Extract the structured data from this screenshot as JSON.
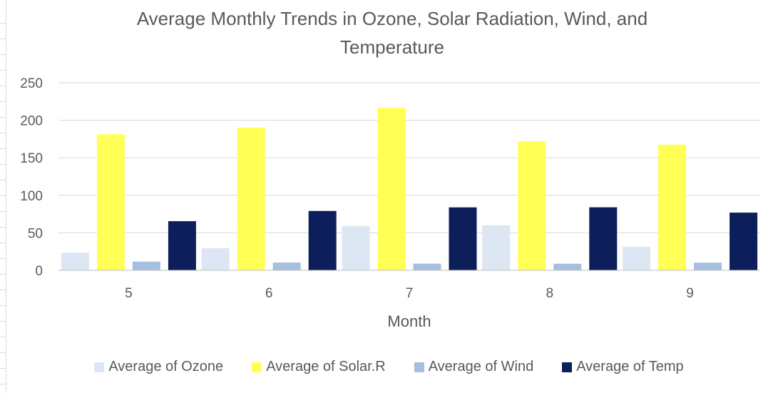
{
  "chart_data": {
    "type": "bar",
    "title": "Average Monthly Trends in Ozone, Solar Radiation, Wind, and Temperature",
    "xlabel": "Month",
    "ylabel": "",
    "categories": [
      "5",
      "6",
      "7",
      "8",
      "9"
    ],
    "ylim": [
      0,
      250
    ],
    "yticks": [
      0,
      50,
      100,
      150,
      200,
      250
    ],
    "grid": true,
    "legend_position": "bottom",
    "series": [
      {
        "name": "Average of Ozone",
        "color": "#dde7f4",
        "values": [
          23.6,
          29.4,
          59.1,
          60.0,
          31.4
        ]
      },
      {
        "name": "Average of Solar.R",
        "color": "#ffff55",
        "values": [
          181.3,
          190.2,
          216.5,
          171.9,
          167.4
        ]
      },
      {
        "name": "Average of Wind",
        "color": "#a5bfdf",
        "values": [
          11.6,
          10.3,
          8.9,
          8.8,
          10.2
        ]
      },
      {
        "name": "Average of Temp",
        "color": "#0c1f5b",
        "values": [
          65.5,
          79.1,
          83.9,
          84.0,
          76.9
        ]
      }
    ]
  }
}
